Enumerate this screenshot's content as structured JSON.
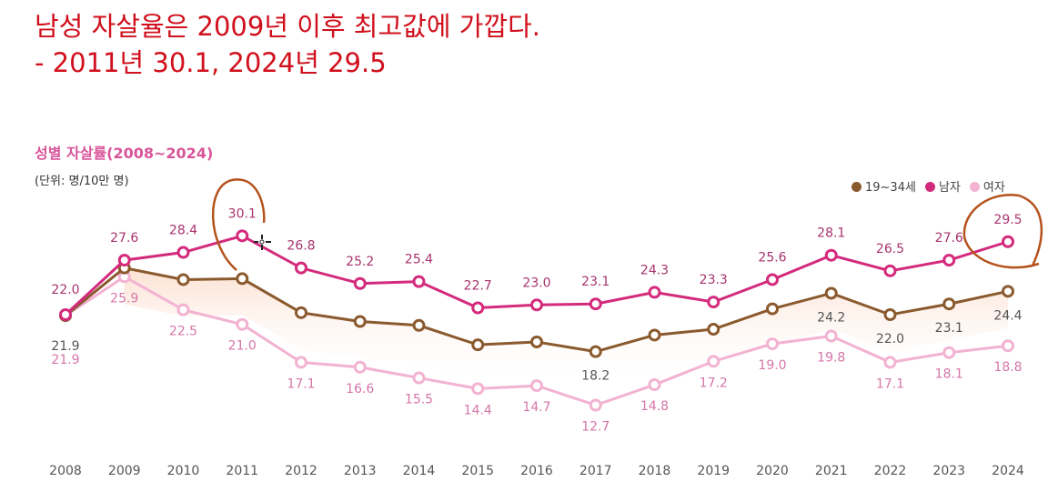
{
  "headline": {
    "line1": "남성 자살율은 2009년 이후 최고값에 가깝다.",
    "line2": "- 2011년 30.1, 2024년 29.5"
  },
  "chart_data": {
    "type": "line",
    "title": "성별 자살률(2008~2024)",
    "unit": "(단위: 명/10만 명)",
    "legend_position": "top-right",
    "grid": false,
    "ylim": [
      10,
      32
    ],
    "x": [
      "2008",
      "2009",
      "2010",
      "2011",
      "2012",
      "2013",
      "2014",
      "2015",
      "2016",
      "2017",
      "2018",
      "2019",
      "2020",
      "2021",
      "2022",
      "2023",
      "2024"
    ],
    "series": [
      {
        "name": "19~34세",
        "color": "#8a5a2e",
        "values": [
          21.9,
          26.8,
          25.6,
          25.7,
          22.2,
          21.3,
          20.9,
          18.9,
          19.2,
          18.2,
          19.9,
          20.5,
          22.6,
          24.2,
          22.0,
          23.1,
          24.4
        ],
        "labels": [
          "21.9",
          null,
          null,
          null,
          null,
          null,
          null,
          null,
          null,
          "18.2",
          null,
          null,
          null,
          "24.2",
          "22.0",
          "23.1",
          "24.4"
        ]
      },
      {
        "name": "남자",
        "color": "#d42a7c",
        "values": [
          22.0,
          27.6,
          28.4,
          30.1,
          26.8,
          25.2,
          25.4,
          22.7,
          23.0,
          23.1,
          24.3,
          23.3,
          25.6,
          28.1,
          26.5,
          27.6,
          29.5
        ],
        "labels": [
          "22.0",
          "27.6",
          "28.4",
          "30.1",
          "26.8",
          "25.2",
          "25.4",
          "22.7",
          "23.0",
          "23.1",
          "24.3",
          "23.3",
          "25.6",
          "28.1",
          "26.5",
          "27.6",
          "29.5"
        ]
      },
      {
        "name": "여자",
        "color": "#f2b2d2",
        "values": [
          21.9,
          25.9,
          22.5,
          21.0,
          17.1,
          16.6,
          15.5,
          14.4,
          14.7,
          12.7,
          14.8,
          17.2,
          19.0,
          19.8,
          17.1,
          18.1,
          18.8
        ],
        "labels": [
          "21.9",
          "25.9",
          "22.5",
          "21.0",
          "17.1",
          "16.6",
          "15.5",
          "14.4",
          "14.7",
          "12.7",
          "14.8",
          "17.2",
          "19.0",
          "19.8",
          "17.1",
          "18.1",
          "18.8"
        ]
      }
    ]
  }
}
